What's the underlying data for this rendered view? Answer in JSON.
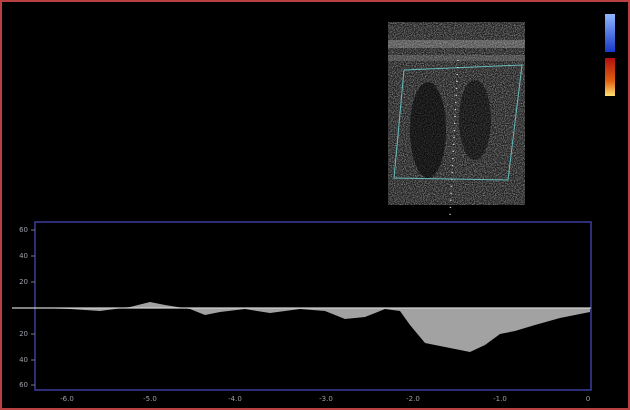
{
  "doppler": {
    "y_labels": [
      "60",
      "40",
      "20",
      "20",
      "40",
      "60"
    ],
    "x_labels": [
      "-6.0",
      "-5.0",
      "-4.0",
      "-3.0",
      "-2.0",
      "-1.0",
      "0"
    ]
  }
}
